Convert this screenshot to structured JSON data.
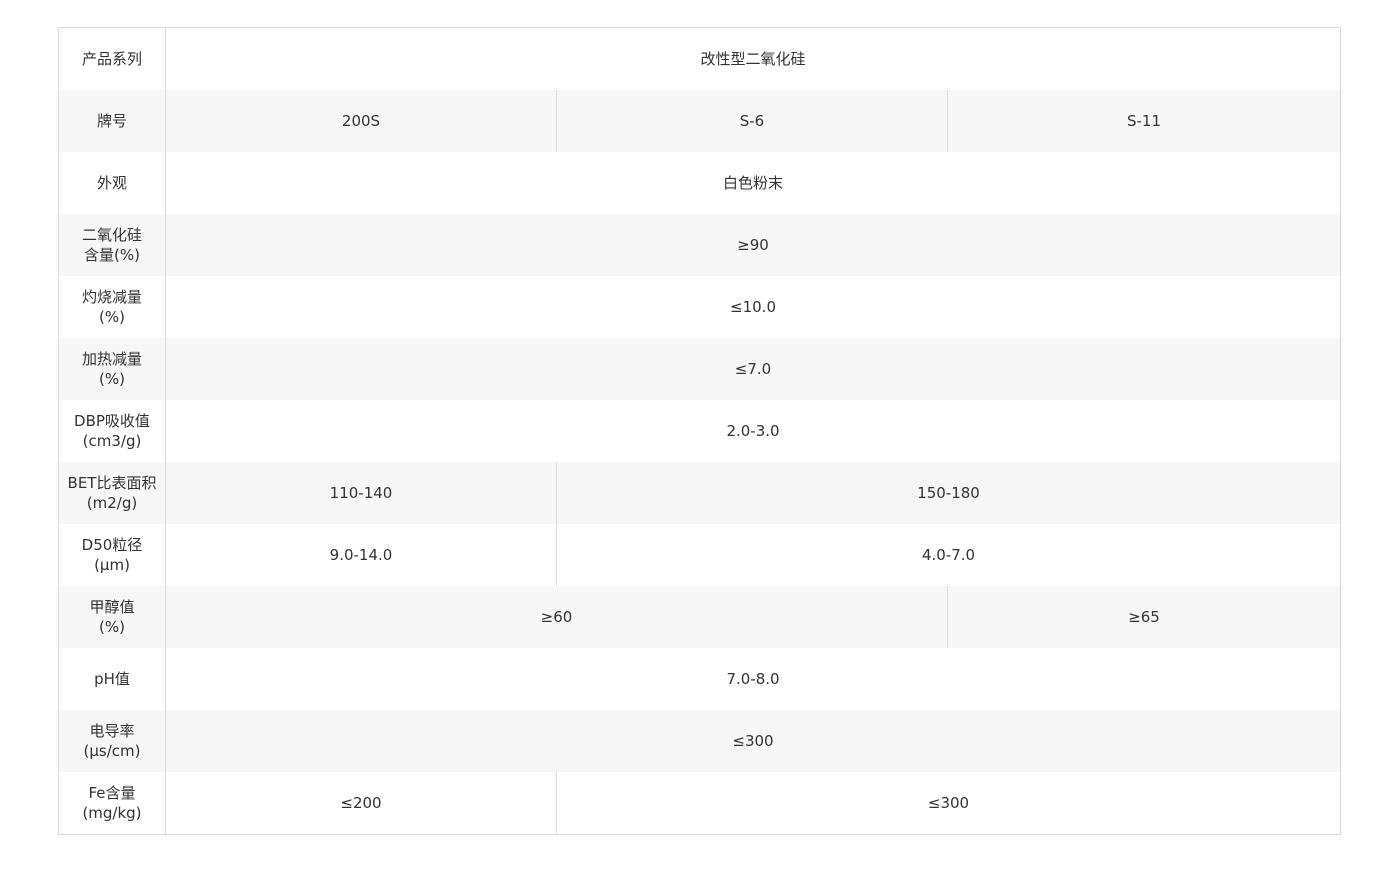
{
  "rows": [
    {
      "label": [
        "产品系列"
      ],
      "cells": [
        {
          "text": "改性型二氧化硅",
          "span": 3
        }
      ]
    },
    {
      "label": [
        "牌号"
      ],
      "cells": [
        {
          "text": "200S",
          "span": 1
        },
        {
          "text": "S-6",
          "span": 1
        },
        {
          "text": "S-11",
          "span": 1
        }
      ]
    },
    {
      "label": [
        "外观"
      ],
      "cells": [
        {
          "text": "白色粉末",
          "span": 3
        }
      ]
    },
    {
      "label": [
        "二氧化硅",
        "含量(%)"
      ],
      "cells": [
        {
          "text": "≥90",
          "span": 3
        }
      ]
    },
    {
      "label": [
        "灼烧减量",
        "(%)"
      ],
      "cells": [
        {
          "text": "≤10.0",
          "span": 3
        }
      ]
    },
    {
      "label": [
        "加热减量",
        "(%)"
      ],
      "cells": [
        {
          "text": "≤7.0",
          "span": 3
        }
      ]
    },
    {
      "label": [
        "DBP吸收值",
        "(cm3/g)"
      ],
      "cells": [
        {
          "text": "2.0-3.0",
          "span": 3
        }
      ]
    },
    {
      "label": [
        "BET比表面积",
        "(m2/g)"
      ],
      "cells": [
        {
          "text": "110-140",
          "span": 1
        },
        {
          "text": "150-180",
          "span": 2
        }
      ]
    },
    {
      "label": [
        "D50粒径",
        "(μm)"
      ],
      "cells": [
        {
          "text": "9.0-14.0",
          "span": 1
        },
        {
          "text": "4.0-7.0",
          "span": 2
        }
      ]
    },
    {
      "label": [
        "甲醇值",
        "(%)"
      ],
      "cells": [
        {
          "text": "≥60",
          "span": 2
        },
        {
          "text": "≥65",
          "span": 1
        }
      ]
    },
    {
      "label": [
        "pH值"
      ],
      "cells": [
        {
          "text": "7.0-8.0",
          "span": 3
        }
      ]
    },
    {
      "label": [
        "电导率",
        "(μs/cm)"
      ],
      "cells": [
        {
          "text": "≤300",
          "span": 3
        }
      ]
    },
    {
      "label": [
        "Fe含量",
        "(mg/kg)"
      ],
      "cells": [
        {
          "text": "≤200",
          "span": 1
        },
        {
          "text": "≤300",
          "span": 2
        }
      ]
    }
  ]
}
